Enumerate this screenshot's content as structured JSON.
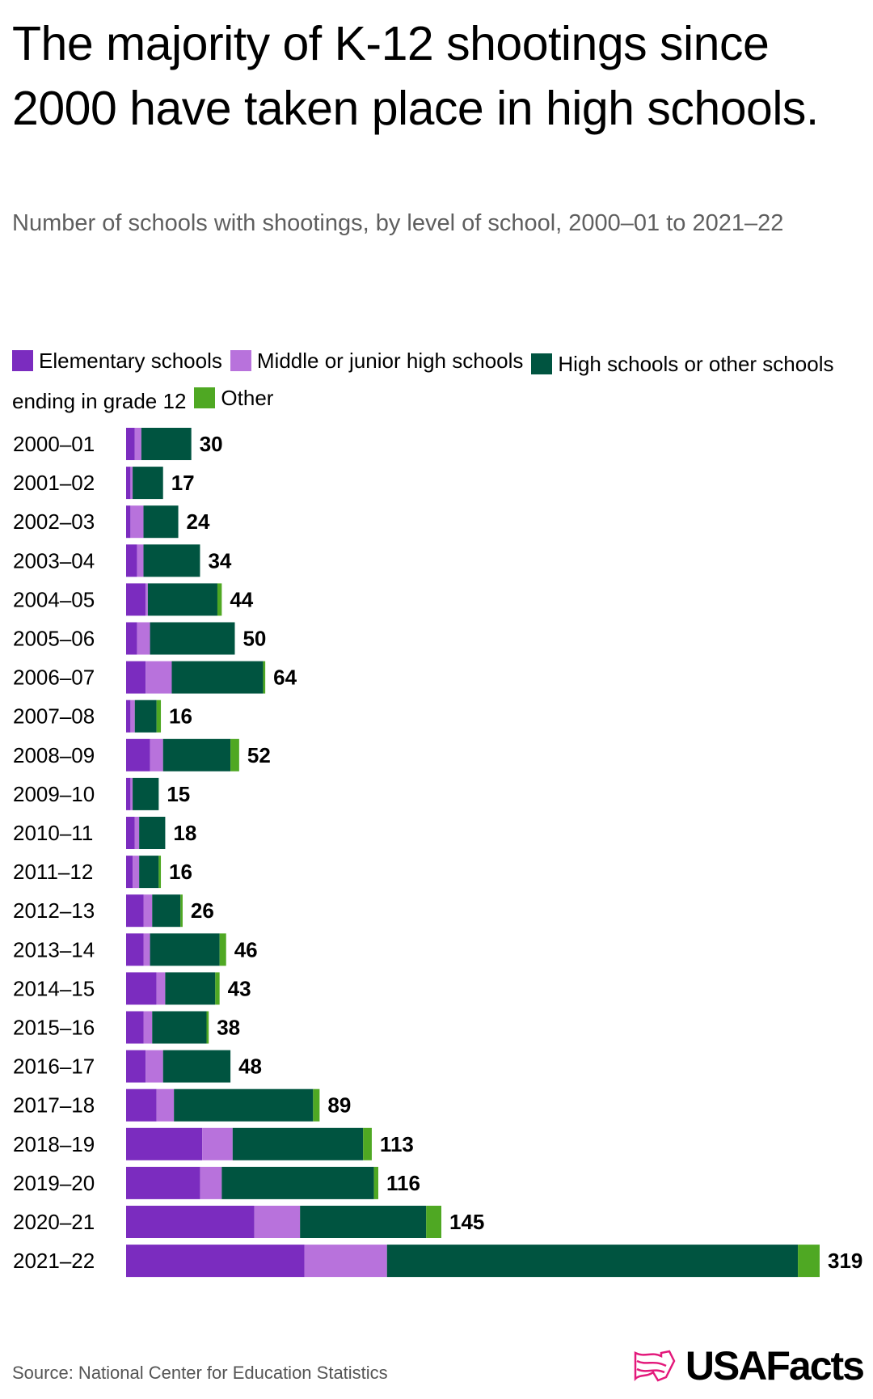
{
  "title": "The majority of K-12 shootings since 2000 have taken place in high schools.",
  "subtitle": "Number of schools with shootings, by level of school, 2000–01 to 2021–22",
  "source": "Source: National Center for Education Statistics",
  "logo": "USAFacts",
  "chart_data": {
    "type": "bar",
    "orientation": "horizontal",
    "stacked": true,
    "title": "The majority of K-12 shootings since 2000 have taken place in high schools.",
    "legend_position": "top",
    "categories": [
      "2000–01",
      "2001–02",
      "2002–03",
      "2003–04",
      "2004–05",
      "2005–06",
      "2006–07",
      "2007–08",
      "2008–09",
      "2009–10",
      "2010–11",
      "2011–12",
      "2012–13",
      "2013–14",
      "2014–15",
      "2015–16",
      "2016–17",
      "2017–18",
      "2018–19",
      "2019–20",
      "2020–21",
      "2021–22"
    ],
    "series": [
      {
        "name": "Elementary schools",
        "color": "#7b2cbf",
        "values": [
          4,
          2,
          2,
          5,
          9,
          5,
          9,
          2,
          11,
          2,
          4,
          3,
          8,
          8,
          14,
          8,
          9,
          14,
          35,
          34,
          59,
          82
        ]
      },
      {
        "name": "Middle or junior high schools",
        "color": "#b872dc",
        "values": [
          3,
          1,
          6,
          3,
          1,
          6,
          12,
          2,
          6,
          1,
          2,
          3,
          4,
          3,
          4,
          4,
          8,
          8,
          14,
          10,
          21,
          38
        ]
      },
      {
        "name": "High schools or other schools ending in grade 12",
        "color": "#005440",
        "values": [
          23,
          14,
          16,
          26,
          32,
          39,
          42,
          10,
          31,
          12,
          12,
          9,
          13,
          32,
          23,
          25,
          31,
          64,
          60,
          70,
          58,
          189
        ]
      },
      {
        "name": "Other",
        "color": "#4fa823",
        "values": [
          0,
          0,
          0,
          0,
          2,
          0,
          1,
          2,
          4,
          0,
          0,
          1,
          1,
          3,
          2,
          1,
          0,
          3,
          4,
          2,
          7,
          10
        ]
      }
    ],
    "totals": [
      30,
      17,
      24,
      34,
      44,
      50,
      64,
      16,
      52,
      15,
      18,
      16,
      26,
      46,
      43,
      38,
      48,
      89,
      113,
      116,
      145,
      319
    ],
    "xlim": [
      0,
      319
    ]
  }
}
